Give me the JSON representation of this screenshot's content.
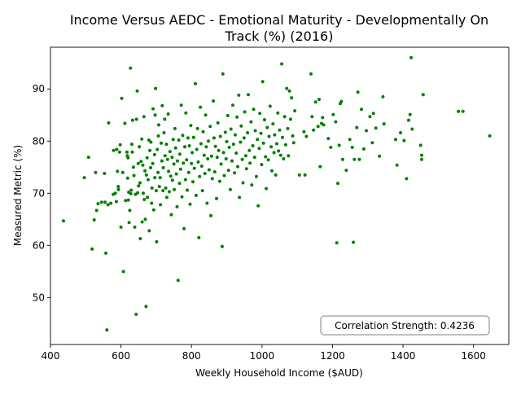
{
  "chart_data": {
    "type": "scatter",
    "title_lines": [
      "Income Versus AEDC - Emotional Maturity - Developmentally On",
      "Track (%) (2016)"
    ],
    "xlabel": "Weekly Household Income ($AUD)",
    "ylabel": "Measured Metric (%)",
    "xlim": [
      400,
      1700
    ],
    "ylim": [
      41,
      98
    ],
    "xticks": [
      400,
      600,
      800,
      1000,
      1200,
      1400,
      1600
    ],
    "yticks": [
      50,
      60,
      70,
      80,
      90
    ],
    "grid": false,
    "annotation": "Correlation Strength: 0.4236",
    "colors": {
      "points": "#008000",
      "axes": "#000000",
      "annotation_border": "#808080"
    },
    "points": [
      [
        437,
        64.7
      ],
      [
        496,
        73.0
      ],
      [
        508,
        76.9
      ],
      [
        518,
        59.3
      ],
      [
        524,
        64.9
      ],
      [
        528,
        74.0
      ],
      [
        531,
        66.7
      ],
      [
        535,
        68.0
      ],
      [
        545,
        68.3
      ],
      [
        553,
        73.8
      ],
      [
        555,
        68.3
      ],
      [
        557,
        58.5
      ],
      [
        560,
        43.8
      ],
      [
        563,
        67.8
      ],
      [
        565,
        83.5
      ],
      [
        571,
        68.1
      ],
      [
        578,
        69.8
      ],
      [
        579,
        78.2
      ],
      [
        584,
        70.0
      ],
      [
        587,
        68.4
      ],
      [
        588,
        78.4
      ],
      [
        590,
        74.2
      ],
      [
        592,
        71.3
      ],
      [
        593,
        70.7
      ],
      [
        596,
        77.9
      ],
      [
        598,
        79.3
      ],
      [
        600,
        63.5
      ],
      [
        602,
        88.2
      ],
      [
        605,
        74.0
      ],
      [
        607,
        55.0
      ],
      [
        611,
        83.4
      ],
      [
        613,
        68.6
      ],
      [
        617,
        77.9
      ],
      [
        618,
        77.2
      ],
      [
        619,
        72.9
      ],
      [
        620,
        76.8
      ],
      [
        621,
        68.7
      ],
      [
        622,
        70.2
      ],
      [
        623,
        64.4
      ],
      [
        625,
        66.7
      ],
      [
        627,
        94.0
      ],
      [
        628,
        69.9
      ],
      [
        629,
        70.6
      ],
      [
        631,
        79.4
      ],
      [
        632,
        77.9
      ],
      [
        633,
        84.0
      ],
      [
        635,
        75.0
      ],
      [
        637,
        73.4
      ],
      [
        639,
        63.5
      ],
      [
        641,
        69.8
      ],
      [
        643,
        46.8
      ],
      [
        644,
        84.2
      ],
      [
        646,
        89.6
      ],
      [
        647,
        70.1
      ],
      [
        649,
        75.7
      ],
      [
        650,
        71.4
      ],
      [
        652,
        78.9
      ],
      [
        654,
        72.0
      ],
      [
        655,
        61.3
      ],
      [
        657,
        76.1
      ],
      [
        659,
        80.4
      ],
      [
        660,
        64.5
      ],
      [
        662,
        75.4
      ],
      [
        663,
        70.0
      ],
      [
        665,
        84.7
      ],
      [
        666,
        68.8
      ],
      [
        668,
        74.3
      ],
      [
        669,
        65.0
      ],
      [
        671,
        48.3
      ],
      [
        672,
        73.5
      ],
      [
        674,
        76.8
      ],
      [
        675,
        69.2
      ],
      [
        677,
        72.6
      ],
      [
        679,
        80.2
      ],
      [
        680,
        62.8
      ],
      [
        682,
        78.2
      ],
      [
        684,
        74.9
      ],
      [
        685,
        79.8
      ],
      [
        687,
        68.1
      ],
      [
        688,
        71.0
      ],
      [
        690,
        75.7
      ],
      [
        691,
        86.2
      ],
      [
        693,
        66.8
      ],
      [
        695,
        77.4
      ],
      [
        696,
        73.0
      ],
      [
        697,
        85.0
      ],
      [
        698,
        90.1
      ],
      [
        700,
        70.5
      ],
      [
        701,
        60.7
      ],
      [
        703,
        78.4
      ],
      [
        705,
        74.0
      ],
      [
        706,
        81.0
      ],
      [
        707,
        83.1
      ],
      [
        709,
        71.3
      ],
      [
        711,
        73.0
      ],
      [
        712,
        67.8
      ],
      [
        714,
        79.6
      ],
      [
        716,
        76.2
      ],
      [
        717,
        86.8
      ],
      [
        719,
        70.5
      ],
      [
        720,
        74.9
      ],
      [
        722,
        81.6
      ],
      [
        724,
        84.2
      ],
      [
        725,
        77.2
      ],
      [
        727,
        71.0
      ],
      [
        729,
        79.4
      ],
      [
        730,
        69.2
      ],
      [
        732,
        76.5
      ],
      [
        734,
        85.2
      ],
      [
        735,
        74.2
      ],
      [
        737,
        70.3
      ],
      [
        739,
        78.0
      ],
      [
        741,
        73.3
      ],
      [
        743,
        65.9
      ],
      [
        745,
        76.9
      ],
      [
        746,
        72.5
      ],
      [
        748,
        80.3
      ],
      [
        750,
        75.6
      ],
      [
        751,
        70.7
      ],
      [
        753,
        82.4
      ],
      [
        755,
        78.7
      ],
      [
        757,
        73.7
      ],
      [
        759,
        67.4
      ],
      [
        760,
        76.2
      ],
      [
        762,
        53.3
      ],
      [
        764,
        80.2
      ],
      [
        766,
        71.9
      ],
      [
        767,
        77.5
      ],
      [
        769,
        74.6
      ],
      [
        771,
        86.9
      ],
      [
        773,
        69.3
      ],
      [
        775,
        81.1
      ],
      [
        777,
        75.8
      ],
      [
        779,
        63.2
      ],
      [
        781,
        78.9
      ],
      [
        783,
        72.6
      ],
      [
        784,
        85.4
      ],
      [
        786,
        76.4
      ],
      [
        788,
        70.6
      ],
      [
        790,
        80.6
      ],
      [
        792,
        74.0
      ],
      [
        794,
        79.1
      ],
      [
        796,
        67.9
      ],
      [
        798,
        83.0
      ],
      [
        800,
        75.7
      ],
      [
        802,
        77.8
      ],
      [
        804,
        72.2
      ],
      [
        806,
        80.7
      ],
      [
        808,
        74.8
      ],
      [
        811,
        91.0
      ],
      [
        813,
        69.6
      ],
      [
        815,
        78.4
      ],
      [
        817,
        82.4
      ],
      [
        819,
        76.0
      ],
      [
        821,
        61.5
      ],
      [
        823,
        73.2
      ],
      [
        825,
        86.5
      ],
      [
        827,
        79.5
      ],
      [
        829,
        75.2
      ],
      [
        831,
        70.5
      ],
      [
        833,
        81.8
      ],
      [
        836,
        77.3
      ],
      [
        838,
        73.8
      ],
      [
        840,
        85.0
      ],
      [
        842,
        78.9
      ],
      [
        844,
        68.1
      ],
      [
        846,
        76.6
      ],
      [
        848,
        80.0
      ],
      [
        850,
        74.5
      ],
      [
        853,
        82.8
      ],
      [
        855,
        65.7
      ],
      [
        857,
        77.1
      ],
      [
        859,
        72.8
      ],
      [
        862,
        87.7
      ],
      [
        864,
        80.6
      ],
      [
        866,
        74.1
      ],
      [
        868,
        79.0
      ],
      [
        871,
        69.0
      ],
      [
        873,
        76.9
      ],
      [
        875,
        83.5
      ],
      [
        877,
        78.2
      ],
      [
        880,
        72.3
      ],
      [
        882,
        80.9
      ],
      [
        884,
        75.6
      ],
      [
        887,
        59.8
      ],
      [
        889,
        92.9
      ],
      [
        891,
        77.8
      ],
      [
        893,
        73.4
      ],
      [
        896,
        81.7
      ],
      [
        898,
        76.6
      ],
      [
        900,
        79.9
      ],
      [
        903,
        84.9
      ],
      [
        905,
        74.4
      ],
      [
        907,
        78.8
      ],
      [
        910,
        70.7
      ],
      [
        912,
        82.3
      ],
      [
        915,
        76.2
      ],
      [
        917,
        86.9
      ],
      [
        919,
        79.4
      ],
      [
        922,
        73.9
      ],
      [
        924,
        81.2
      ],
      [
        927,
        77.7
      ],
      [
        929,
        84.6
      ],
      [
        931,
        75.1
      ],
      [
        934,
        88.8
      ],
      [
        936,
        69.2
      ],
      [
        939,
        79.8
      ],
      [
        941,
        82.9
      ],
      [
        944,
        76.5
      ],
      [
        946,
        72.0
      ],
      [
        949,
        80.6
      ],
      [
        951,
        85.6
      ],
      [
        954,
        77.2
      ],
      [
        956,
        74.7
      ],
      [
        959,
        81.6
      ],
      [
        961,
        88.9
      ],
      [
        964,
        78.2
      ],
      [
        966,
        75.8
      ],
      [
        969,
        83.7
      ],
      [
        971,
        71.6
      ],
      [
        974,
        79.1
      ],
      [
        976,
        86.1
      ],
      [
        979,
        76.9
      ],
      [
        981,
        82.0
      ],
      [
        984,
        73.2
      ],
      [
        987,
        80.3
      ],
      [
        989,
        67.6
      ],
      [
        992,
        78.6
      ],
      [
        994,
        85.3
      ],
      [
        997,
        81.5
      ],
      [
        999,
        75.5
      ],
      [
        1002,
        91.4
      ],
      [
        1004,
        79.6
      ],
      [
        1007,
        84.1
      ],
      [
        1010,
        77.0
      ],
      [
        1012,
        70.9
      ],
      [
        1015,
        82.6
      ],
      [
        1018,
        76.4
      ],
      [
        1020,
        80.9
      ],
      [
        1023,
        86.7
      ],
      [
        1026,
        78.9
      ],
      [
        1028,
        74.3
      ],
      [
        1031,
        83.3
      ],
      [
        1034,
        77.8
      ],
      [
        1036,
        81.2
      ],
      [
        1039,
        73.5
      ],
      [
        1042,
        79.5
      ],
      [
        1045,
        85.4
      ],
      [
        1047,
        78.1
      ],
      [
        1050,
        82.1
      ],
      [
        1053,
        77.3
      ],
      [
        1056,
        94.8
      ],
      [
        1058,
        80.7
      ],
      [
        1061,
        76.6
      ],
      [
        1064,
        84.7
      ],
      [
        1067,
        79.3
      ],
      [
        1070,
        90.1
      ],
      [
        1073,
        82.4
      ],
      [
        1075,
        77.2
      ],
      [
        1078,
        89.6
      ],
      [
        1081,
        84.2
      ],
      [
        1084,
        88.3
      ],
      [
        1087,
        81.0
      ],
      [
        1090,
        79.7
      ],
      [
        1093,
        85.8
      ],
      [
        1106,
        73.5
      ],
      [
        1119,
        81.8
      ],
      [
        1122,
        73.5
      ],
      [
        1126,
        80.9
      ],
      [
        1139,
        92.9
      ],
      [
        1142,
        84.7
      ],
      [
        1146,
        82.1
      ],
      [
        1152,
        87.5
      ],
      [
        1159,
        82.8
      ],
      [
        1162,
        88.0
      ],
      [
        1165,
        75.1
      ],
      [
        1169,
        83.4
      ],
      [
        1172,
        84.5
      ],
      [
        1175,
        83.1
      ],
      [
        1188,
        80.5
      ],
      [
        1195,
        78.8
      ],
      [
        1202,
        85.1
      ],
      [
        1209,
        83.7
      ],
      [
        1212,
        60.5
      ],
      [
        1215,
        71.9
      ],
      [
        1219,
        79.2
      ],
      [
        1222,
        87.2
      ],
      [
        1225,
        87.6
      ],
      [
        1229,
        76.5
      ],
      [
        1239,
        74.4
      ],
      [
        1249,
        80.3
      ],
      [
        1256,
        78.8
      ],
      [
        1259,
        60.6
      ],
      [
        1262,
        76.5
      ],
      [
        1269,
        82.6
      ],
      [
        1272,
        89.4
      ],
      [
        1276,
        76.5
      ],
      [
        1282,
        86.1
      ],
      [
        1289,
        78.5
      ],
      [
        1296,
        82.0
      ],
      [
        1306,
        84.7
      ],
      [
        1313,
        79.7
      ],
      [
        1316,
        85.3
      ],
      [
        1323,
        82.5
      ],
      [
        1333,
        77.1
      ],
      [
        1343,
        88.5
      ],
      [
        1346,
        83.3
      ],
      [
        1379,
        80.3
      ],
      [
        1383,
        75.4
      ],
      [
        1393,
        81.6
      ],
      [
        1403,
        80.1
      ],
      [
        1410,
        72.8
      ],
      [
        1416,
        84.0
      ],
      [
        1420,
        85.1
      ],
      [
        1423,
        96.0
      ],
      [
        1426,
        82.3
      ],
      [
        1450,
        79.2
      ],
      [
        1453,
        77.3
      ],
      [
        1453,
        76.5
      ],
      [
        1457,
        88.9
      ],
      [
        1557,
        85.7
      ],
      [
        1570,
        85.7
      ],
      [
        1646,
        81.0
      ]
    ]
  }
}
